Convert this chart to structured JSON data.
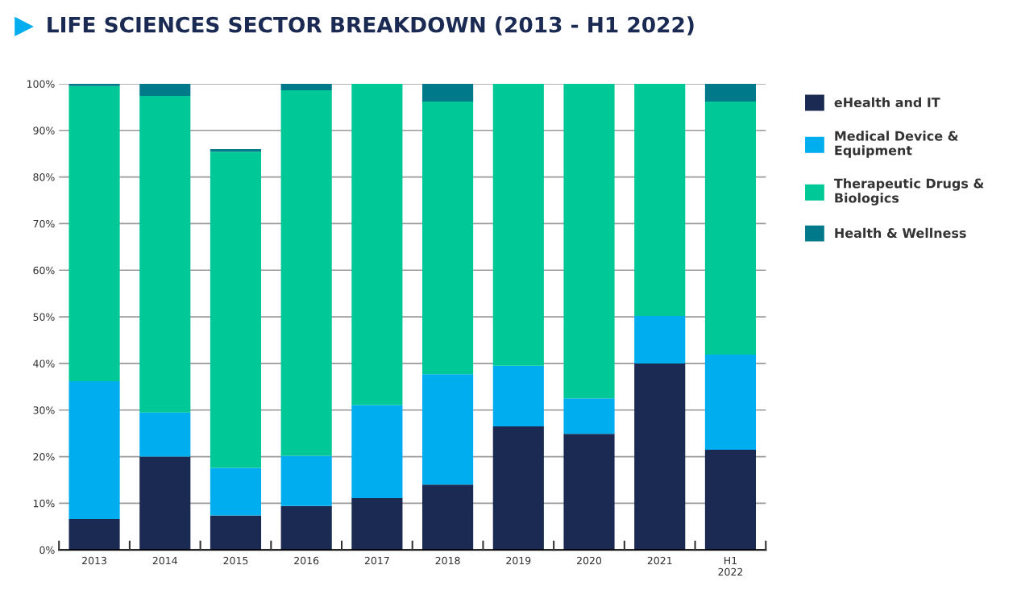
{
  "chart_data": {
    "type": "bar",
    "title": "LIFE SCIENCES SECTOR BREAKDOWN (2013 - H1 2022)",
    "categories": [
      "2013",
      "2014",
      "2015",
      "2016",
      "2017",
      "2018",
      "2019",
      "2020",
      "2021",
      "H1\n2022"
    ],
    "stacked": true,
    "series": [
      {
        "name": "eHealth and IT",
        "color": "#1a2a52",
        "values": [
          6.6,
          20.0,
          7.4,
          9.4,
          11.1,
          14.0,
          26.5,
          24.9,
          40.0,
          21.5
        ]
      },
      {
        "name": "Medical Device &\nEquipment",
        "color": "#00aeef",
        "values": [
          29.6,
          9.5,
          10.2,
          10.8,
          20.0,
          23.7,
          13.0,
          7.6,
          10.2,
          20.4
        ]
      },
      {
        "name": "Therapeutic Drugs &\nBiologics",
        "color": "#00c896",
        "values": [
          63.3,
          67.9,
          67.8,
          78.4,
          68.9,
          58.5,
          60.5,
          67.5,
          49.8,
          54.3
        ]
      },
      {
        "name": "Health & Wellness",
        "color": "#007a8a",
        "values": [
          0.5,
          2.6,
          0.6,
          1.4,
          0,
          3.8,
          0,
          0,
          0,
          3.8
        ]
      }
    ],
    "ylim": [
      0,
      100
    ],
    "yticks": [
      {
        "value": 0,
        "label": "0%"
      },
      {
        "value": 10,
        "label": "10%"
      },
      {
        "value": 20,
        "label": "20%"
      },
      {
        "value": 30,
        "label": "30%"
      },
      {
        "value": 40,
        "label": "40%"
      },
      {
        "value": 50,
        "label": "50%"
      },
      {
        "value": 60,
        "label": "60%"
      },
      {
        "value": 70,
        "label": "70%"
      },
      {
        "value": 80,
        "label": "80%"
      },
      {
        "value": 90,
        "label": "90%"
      },
      {
        "value": 100,
        "label": "100%"
      }
    ],
    "grid": "y",
    "legend": "right"
  }
}
